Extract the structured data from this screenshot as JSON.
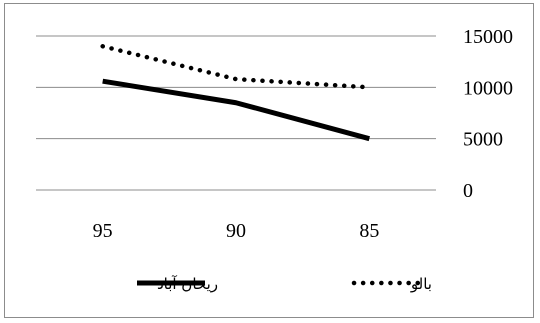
{
  "chart_data": {
    "type": "line",
    "categories": [
      "95",
      "90",
      "85"
    ],
    "series": [
      {
        "name": "ریحان آباد",
        "values": [
          10600,
          8500,
          5000
        ],
        "color": "#000000",
        "style": "solid"
      },
      {
        "name": "بالو",
        "values": [
          14000,
          10800,
          10000
        ],
        "color": "#000000",
        "style": "dotted"
      }
    ],
    "y_ticks": [
      "0",
      "5000",
      "10000",
      "15000"
    ],
    "ylim": [
      0,
      15000
    ],
    "grid": true,
    "legend_position": "bottom",
    "title": "",
    "xlabel": "",
    "ylabel": ""
  }
}
